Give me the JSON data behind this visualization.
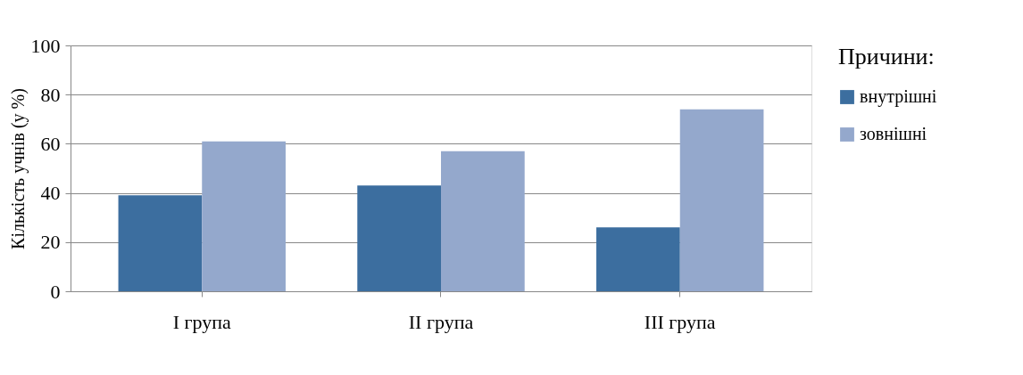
{
  "chart_data": {
    "type": "bar",
    "ylabel": "Кількість учнів (у %)",
    "legend_title": "Причини:",
    "categories": [
      "I група",
      "II група",
      "III група"
    ],
    "series": [
      {
        "name": "внутрішні",
        "color": "#3c6e9f",
        "values": [
          39,
          43,
          26
        ]
      },
      {
        "name": "зовнішні",
        "color": "#94a8cc",
        "values": [
          61,
          57,
          74
        ]
      }
    ],
    "ylim": [
      0,
      100
    ],
    "yticks": [
      0,
      20,
      40,
      60,
      80,
      100
    ],
    "grid": "y",
    "legend": "right"
  }
}
